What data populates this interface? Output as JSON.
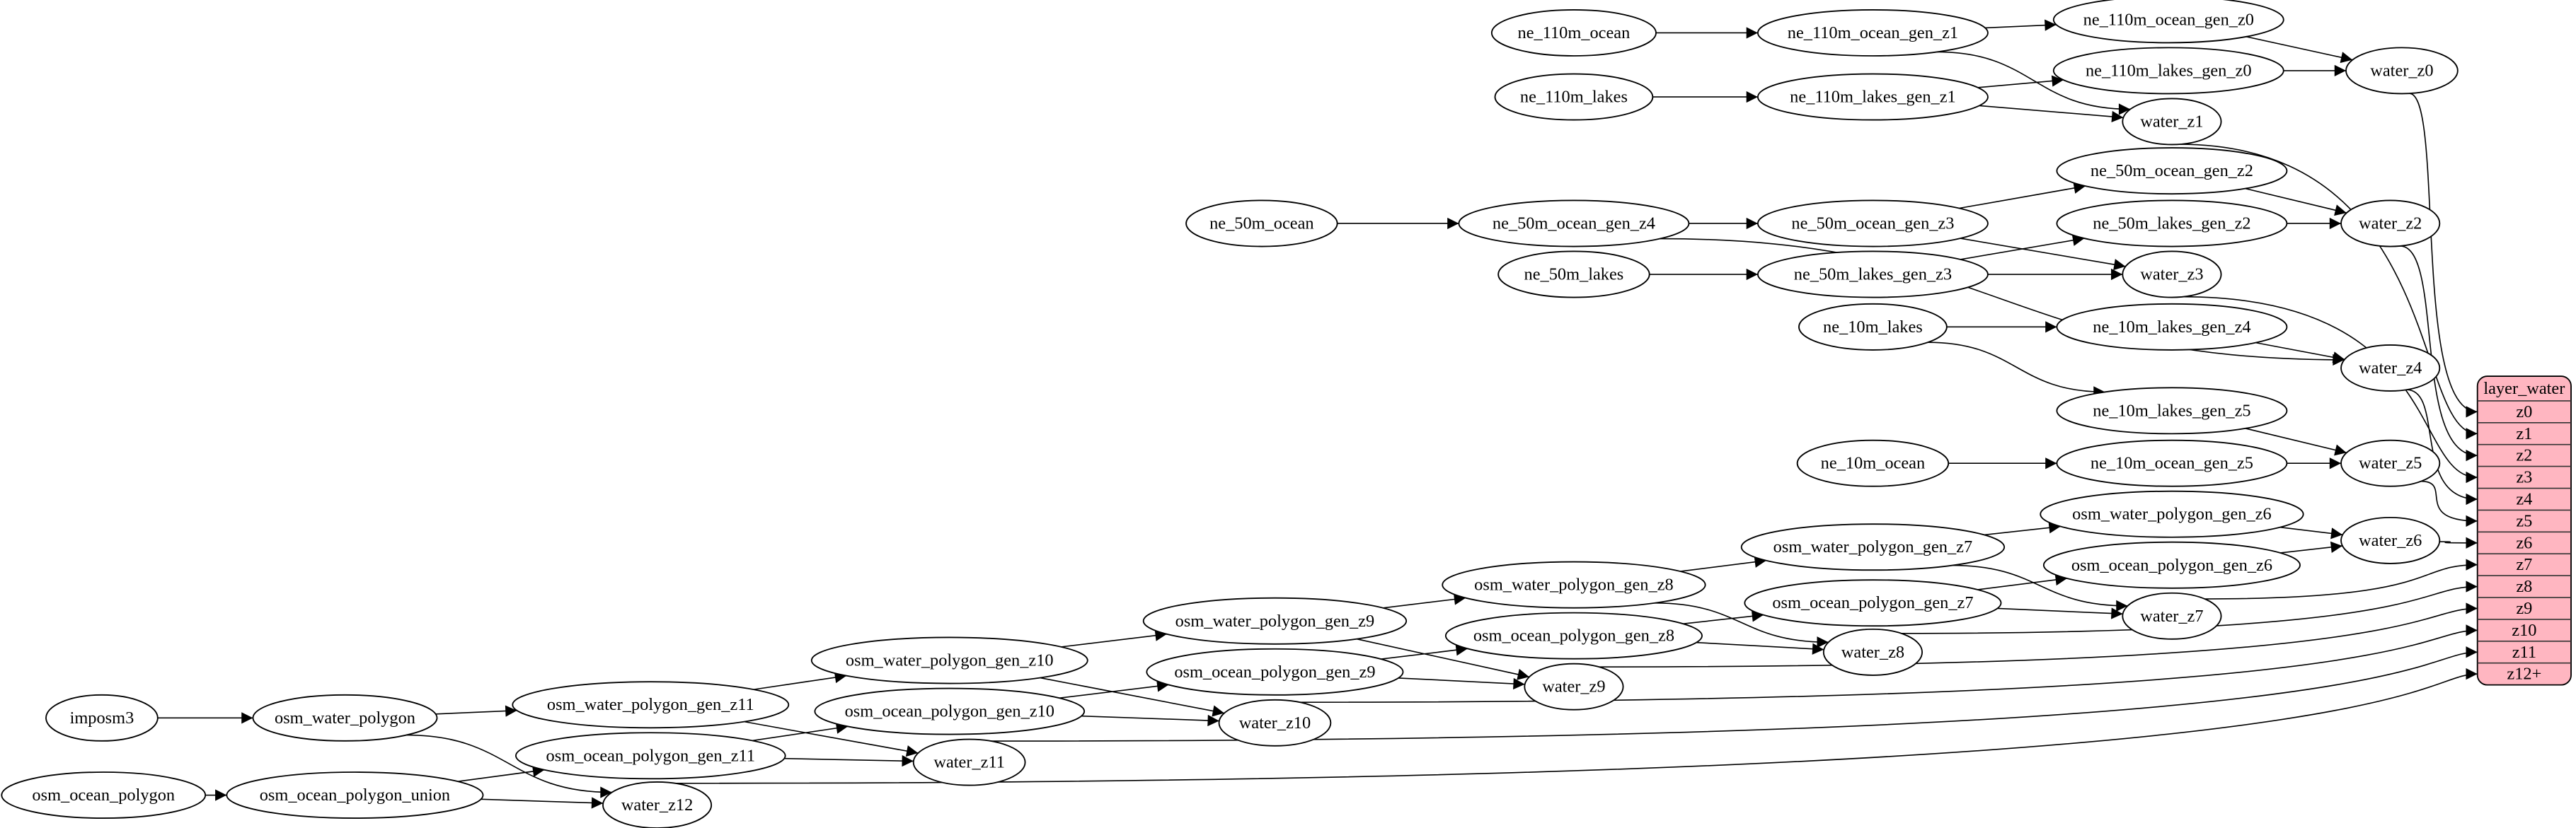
{
  "colors": {
    "record_fill": "#ffb6c1",
    "stroke": "#000000",
    "background": "#ffffff"
  },
  "nodes": [
    "ne_110m_ocean",
    "ne_110m_ocean_gen_z1",
    "ne_110m_ocean_gen_z0",
    "ne_110m_lakes",
    "ne_110m_lakes_gen_z1",
    "ne_110m_lakes_gen_z0",
    "water_z0",
    "water_z1",
    "ne_50m_ocean",
    "ne_50m_ocean_gen_z4",
    "ne_50m_ocean_gen_z3",
    "ne_50m_ocean_gen_z2",
    "ne_50m_lakes",
    "ne_50m_lakes_gen_z3",
    "ne_50m_lakes_gen_z2",
    "water_z2",
    "water_z3",
    "ne_10m_lakes",
    "ne_10m_lakes_gen_z4",
    "ne_10m_lakes_gen_z5",
    "ne_10m_ocean",
    "ne_10m_ocean_gen_z5",
    "water_z4",
    "water_z5",
    "osm_water_polygon_gen_z6",
    "osm_ocean_polygon_gen_z6",
    "water_z6",
    "osm_water_polygon_gen_z7",
    "osm_ocean_polygon_gen_z7",
    "water_z7",
    "osm_water_polygon_gen_z8",
    "osm_ocean_polygon_gen_z8",
    "water_z8",
    "osm_water_polygon_gen_z9",
    "osm_ocean_polygon_gen_z9",
    "water_z9",
    "osm_water_polygon_gen_z10",
    "osm_ocean_polygon_gen_z10",
    "water_z10",
    "osm_water_polygon_gen_z11",
    "osm_ocean_polygon_gen_z11",
    "water_z11",
    "imposm3",
    "osm_water_polygon",
    "osm_ocean_polygon",
    "osm_ocean_polygon_union",
    "water_z12"
  ],
  "record": {
    "title": "layer_water",
    "fields": [
      "z0",
      "z1",
      "z2",
      "z3",
      "z4",
      "z5",
      "z6",
      "z7",
      "z8",
      "z9",
      "z10",
      "z11",
      "z12+"
    ]
  },
  "edges": [
    [
      "ne_110m_ocean",
      "ne_110m_ocean_gen_z1"
    ],
    [
      "ne_110m_ocean_gen_z1",
      "ne_110m_ocean_gen_z0"
    ],
    [
      "ne_110m_ocean_gen_z1",
      "water_z1"
    ],
    [
      "ne_110m_ocean_gen_z0",
      "water_z0"
    ],
    [
      "ne_110m_lakes",
      "ne_110m_lakes_gen_z1"
    ],
    [
      "ne_110m_lakes_gen_z1",
      "ne_110m_lakes_gen_z0"
    ],
    [
      "ne_110m_lakes_gen_z1",
      "water_z1"
    ],
    [
      "ne_110m_lakes_gen_z0",
      "water_z0"
    ],
    [
      "water_z0",
      "layer_water:z0"
    ],
    [
      "water_z1",
      "layer_water:z1"
    ],
    [
      "ne_50m_ocean",
      "ne_50m_ocean_gen_z4"
    ],
    [
      "ne_50m_ocean_gen_z4",
      "ne_50m_ocean_gen_z3"
    ],
    [
      "ne_50m_ocean_gen_z4",
      "water_z4"
    ],
    [
      "ne_50m_ocean_gen_z3",
      "ne_50m_ocean_gen_z2"
    ],
    [
      "ne_50m_ocean_gen_z3",
      "water_z3"
    ],
    [
      "ne_50m_ocean_gen_z2",
      "water_z2"
    ],
    [
      "ne_50m_lakes",
      "ne_50m_lakes_gen_z3"
    ],
    [
      "ne_50m_lakes_gen_z3",
      "ne_50m_lakes_gen_z2"
    ],
    [
      "ne_50m_lakes_gen_z3",
      "water_z3"
    ],
    [
      "ne_50m_lakes_gen_z2",
      "water_z2"
    ],
    [
      "water_z2",
      "layer_water:z2"
    ],
    [
      "water_z3",
      "layer_water:z3"
    ],
    [
      "ne_10m_lakes",
      "ne_10m_lakes_gen_z4"
    ],
    [
      "ne_10m_lakes",
      "ne_10m_lakes_gen_z5"
    ],
    [
      "ne_10m_lakes_gen_z4",
      "water_z4"
    ],
    [
      "ne_10m_lakes_gen_z5",
      "water_z5"
    ],
    [
      "ne_10m_ocean",
      "ne_10m_ocean_gen_z5"
    ],
    [
      "ne_10m_ocean_gen_z5",
      "water_z5"
    ],
    [
      "water_z4",
      "layer_water:z4"
    ],
    [
      "water_z5",
      "layer_water:z5"
    ],
    [
      "osm_water_polygon_gen_z7",
      "osm_water_polygon_gen_z6"
    ],
    [
      "osm_water_polygon_gen_z7",
      "water_z7"
    ],
    [
      "osm_water_polygon_gen_z6",
      "water_z6"
    ],
    [
      "osm_ocean_polygon_gen_z7",
      "osm_ocean_polygon_gen_z6"
    ],
    [
      "osm_ocean_polygon_gen_z7",
      "water_z7"
    ],
    [
      "osm_ocean_polygon_gen_z6",
      "water_z6"
    ],
    [
      "water_z6",
      "layer_water:z6"
    ],
    [
      "water_z7",
      "layer_water:z7"
    ],
    [
      "osm_water_polygon_gen_z8",
      "osm_water_polygon_gen_z7"
    ],
    [
      "osm_water_polygon_gen_z8",
      "water_z8"
    ],
    [
      "osm_ocean_polygon_gen_z8",
      "osm_ocean_polygon_gen_z7"
    ],
    [
      "osm_ocean_polygon_gen_z8",
      "water_z8"
    ],
    [
      "water_z8",
      "layer_water:z8"
    ],
    [
      "osm_water_polygon_gen_z9",
      "osm_water_polygon_gen_z8"
    ],
    [
      "osm_water_polygon_gen_z9",
      "water_z9"
    ],
    [
      "osm_ocean_polygon_gen_z9",
      "osm_ocean_polygon_gen_z8"
    ],
    [
      "osm_ocean_polygon_gen_z9",
      "water_z9"
    ],
    [
      "water_z9",
      "layer_water:z9"
    ],
    [
      "osm_water_polygon_gen_z10",
      "osm_water_polygon_gen_z9"
    ],
    [
      "osm_water_polygon_gen_z10",
      "water_z10"
    ],
    [
      "osm_ocean_polygon_gen_z10",
      "osm_ocean_polygon_gen_z9"
    ],
    [
      "osm_ocean_polygon_gen_z10",
      "water_z10"
    ],
    [
      "water_z10",
      "layer_water:z10"
    ],
    [
      "osm_water_polygon_gen_z11",
      "osm_water_polygon_gen_z10"
    ],
    [
      "osm_water_polygon_gen_z11",
      "water_z11"
    ],
    [
      "osm_ocean_polygon_gen_z11",
      "osm_ocean_polygon_gen_z10"
    ],
    [
      "osm_ocean_polygon_gen_z11",
      "water_z11"
    ],
    [
      "water_z11",
      "layer_water:z11"
    ],
    [
      "imposm3",
      "osm_water_polygon"
    ],
    [
      "osm_water_polygon",
      "osm_water_polygon_gen_z11"
    ],
    [
      "osm_water_polygon",
      "water_z12"
    ],
    [
      "osm_ocean_polygon",
      "osm_ocean_polygon_union"
    ],
    [
      "osm_ocean_polygon_union",
      "osm_ocean_polygon_gen_z11"
    ],
    [
      "osm_ocean_polygon_union",
      "water_z12"
    ],
    [
      "water_z12",
      "layer_water:z12+"
    ]
  ]
}
